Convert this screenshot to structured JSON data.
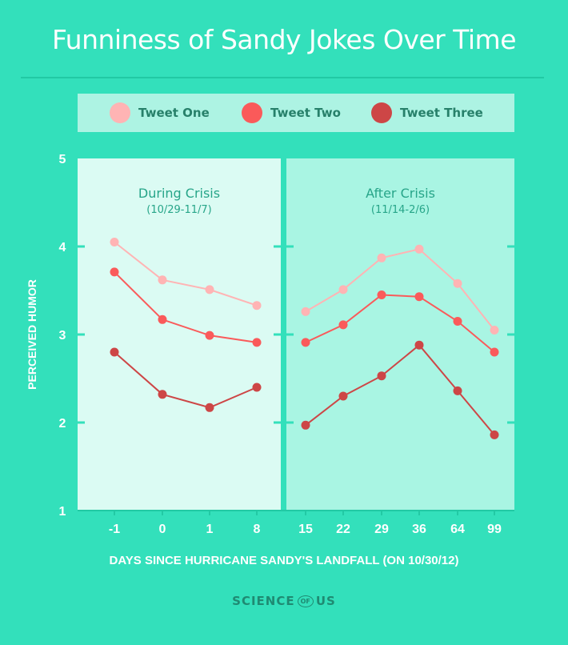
{
  "title": "Funniness of Sandy Jokes Over Time",
  "legend": [
    {
      "label": "Tweet One",
      "color": "#ffb4b4"
    },
    {
      "label": "Tweet Two",
      "color": "#fa5a5a"
    },
    {
      "label": "Tweet Three",
      "color": "#cd4646"
    }
  ],
  "logo": {
    "left": "SCIENCE",
    "of": "OF",
    "right": "US"
  },
  "chart_data": {
    "type": "line",
    "title": "Funniness of Sandy Jokes Over Time",
    "xlabel": "DAYS SINCE HURRICANE SANDY'S LANDFALL (ON 10/30/12)",
    "ylabel": "PERCEIVED HUMOR",
    "ylim": [
      1,
      5
    ],
    "yticks": [
      "1",
      "2",
      "3",
      "4",
      "5"
    ],
    "grid": false,
    "legend_position": "top",
    "panels": [
      {
        "label": "During Crisis",
        "sublabel": "(10/29-11/7)",
        "categories": [
          "-1",
          "0",
          "1",
          "8"
        ],
        "series": [
          {
            "name": "Tweet One",
            "values": [
              4.05,
              3.62,
              3.51,
              3.33
            ]
          },
          {
            "name": "Tweet Two",
            "values": [
              3.71,
              3.17,
              2.99,
              2.91
            ]
          },
          {
            "name": "Tweet Three",
            "values": [
              2.8,
              2.32,
              2.17,
              2.4
            ]
          }
        ]
      },
      {
        "label": "After Crisis",
        "sublabel": "(11/14-2/6)",
        "categories": [
          "15",
          "22",
          "29",
          "36",
          "64",
          "99"
        ],
        "series": [
          {
            "name": "Tweet One",
            "values": [
              3.26,
              3.51,
              3.87,
              3.97,
              3.58,
              3.05
            ]
          },
          {
            "name": "Tweet Two",
            "values": [
              2.91,
              3.11,
              3.45,
              3.43,
              3.15,
              2.8
            ]
          },
          {
            "name": "Tweet Three",
            "values": [
              1.97,
              2.3,
              2.53,
              2.88,
              2.36,
              1.86
            ]
          }
        ]
      }
    ]
  }
}
